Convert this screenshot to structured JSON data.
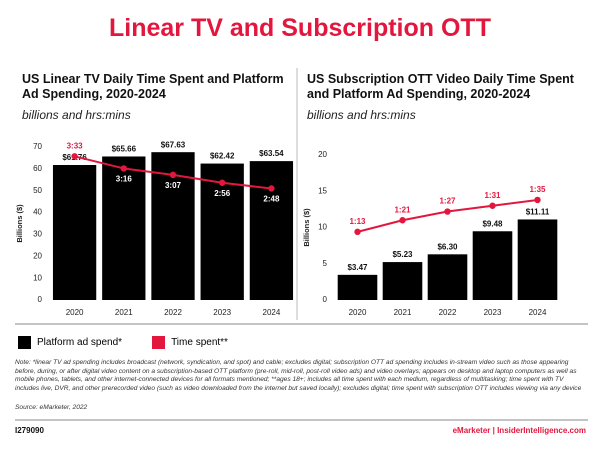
{
  "header": {
    "title": "Linear TV and Subscription OTT"
  },
  "chart_data": [
    {
      "type": "bar",
      "title": "US Linear TV Daily Time Spent and Platform Ad Spending, 2020-2024",
      "subtitle": "billions and hrs:mins",
      "ylabel": "Billions ($)",
      "categories": [
        "2020",
        "2021",
        "2022",
        "2023",
        "2024"
      ],
      "ylim": [
        0,
        70
      ],
      "yticks": [
        0,
        10,
        20,
        30,
        40,
        50,
        60,
        70
      ],
      "y2lim": [
        12,
        226
      ],
      "series": [
        {
          "name": "Platform ad spend*",
          "type": "bar",
          "color": "#000000",
          "values": [
            61.76,
            65.66,
            67.63,
            62.42,
            63.54
          ],
          "value_labels": [
            "$61.76",
            "$65.66",
            "$67.63",
            "$62.42",
            "$63.54"
          ]
        },
        {
          "name": "Time spent**",
          "type": "line",
          "axis": "y2",
          "color": "#e3173e",
          "values": [
            213,
            196,
            187,
            176,
            168
          ],
          "value_labels": [
            "3:33",
            "3:16",
            "3:07",
            "2:56",
            "2:48"
          ]
        }
      ]
    },
    {
      "type": "bar",
      "title": "US Subscription OTT Video Daily Time Spent and Platform Ad Spending, 2020-2024",
      "subtitle": "billions and hrs:mins",
      "ylabel": "Billions ($)",
      "categories": [
        "2020",
        "2021",
        "2022",
        "2023",
        "2024"
      ],
      "ylim": [
        0,
        20
      ],
      "yticks": [
        0,
        5,
        10,
        15,
        20
      ],
      "y2lim": [
        26,
        126
      ],
      "series": [
        {
          "name": "Platform ad spend*",
          "type": "bar",
          "color": "#000000",
          "values": [
            3.47,
            5.23,
            6.3,
            9.48,
            11.11
          ],
          "value_labels": [
            "$3.47",
            "$5.23",
            "$6.30",
            "$9.48",
            "$11.11"
          ]
        },
        {
          "name": "Time spent**",
          "type": "line",
          "axis": "y2",
          "color": "#e3173e",
          "values": [
            73,
            81,
            87,
            91,
            95
          ],
          "value_labels": [
            "1:13",
            "1:21",
            "1:27",
            "1:31",
            "1:35"
          ]
        }
      ]
    }
  ],
  "note": "Note: *linear TV ad spending includes broadcast (network, syndication, and spot) and cable; excludes digital; subscription OTT ad spending includes in-stream video such as those appearing before, during, or after digital video content on a subscription-based OTT platform (pre-roll, mid-roll, post-roll video ads) and video overlays; appears on desktop and laptop computers as well as mobile phones, tablets, and other internet-connected devices for all formats mentioned; **ages 18+; includes all time spent with each medium, regardless of multitasking; time spent with TV includes live, DVR, and other prerecorded video (such as video downloaded from the internet but saved locally); excludes digital; time spent with subscription OTT includes viewing via any device",
  "source": "Source: eMarketer, 2022",
  "footer": {
    "id": "I279090",
    "brand": "eMarketer | InsiderIntelligence.com"
  }
}
